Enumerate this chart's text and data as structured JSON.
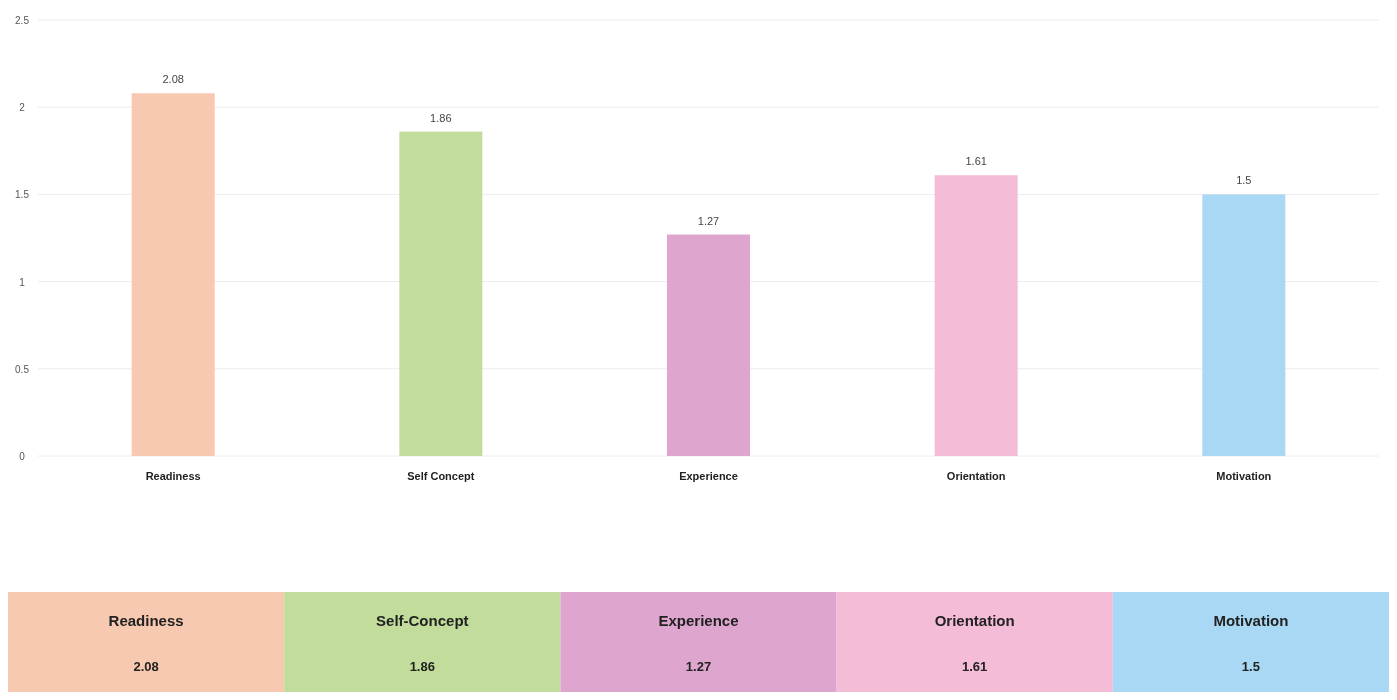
{
  "chart_data": {
    "type": "bar",
    "categories": [
      "Readiness",
      "Self Concept",
      "Experience",
      "Orientation",
      "Motivation"
    ],
    "values": [
      2.08,
      1.86,
      1.27,
      1.61,
      1.5
    ],
    "value_labels": [
      "2.08",
      "1.86",
      "1.27",
      "1.61",
      "1.5"
    ],
    "colors": [
      "#f6c9b0",
      "#c2dc9c",
      "#dea6cf",
      "#f5bcd7",
      "#a8d8f3"
    ],
    "ylim": [
      0,
      2.5
    ],
    "yticks": [
      0,
      0.5,
      1,
      1.5,
      2,
      2.5
    ],
    "grid": "y",
    "annotations": [
      "Readiness",
      "Self-Concept",
      "Experience",
      "Orientation",
      "Motivation",
      "2.08",
      "1.86",
      "1.27",
      "1.61",
      "1.5"
    ]
  }
}
